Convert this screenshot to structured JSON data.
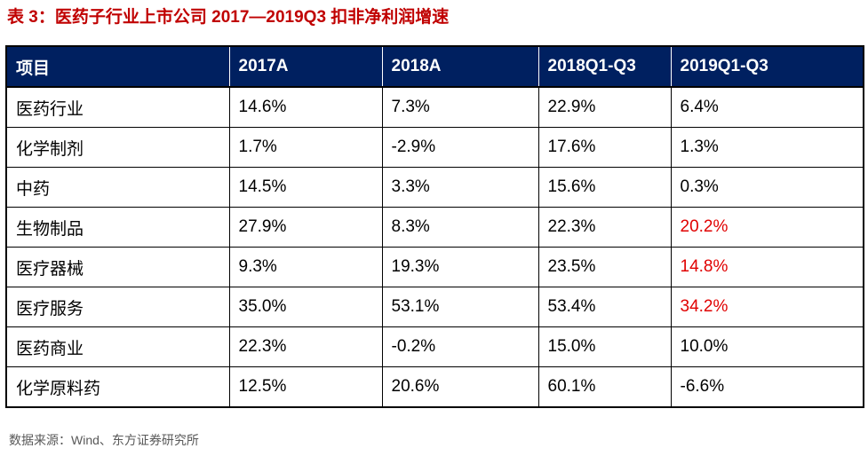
{
  "title": "表 3：医药子行业上市公司 2017—2019Q3 扣非净利润增速",
  "header": [
    "项目",
    "2017A",
    "2018A",
    "2018Q1-Q3",
    "2019Q1-Q3"
  ],
  "rows": [
    {
      "name": "医药行业",
      "v2017": "14.6%",
      "v2018": "7.3%",
      "q2018": "22.9%",
      "q2019": "6.4%",
      "highlight": false
    },
    {
      "name": "化学制剂",
      "v2017": "1.7%",
      "v2018": "-2.9%",
      "q2018": "17.6%",
      "q2019": "1.3%",
      "highlight": false
    },
    {
      "name": "中药",
      "v2017": "14.5%",
      "v2018": "3.3%",
      "q2018": "15.6%",
      "q2019": "0.3%",
      "highlight": false
    },
    {
      "name": "生物制品",
      "v2017": "27.9%",
      "v2018": "8.3%",
      "q2018": "22.3%",
      "q2019": "20.2%",
      "highlight": true
    },
    {
      "name": "医疗器械",
      "v2017": "9.3%",
      "v2018": "19.3%",
      "q2018": "23.5%",
      "q2019": "14.8%",
      "highlight": true
    },
    {
      "name": "医疗服务",
      "v2017": "35.0%",
      "v2018": "53.1%",
      "q2018": "53.4%",
      "q2019": "34.2%",
      "highlight": true
    },
    {
      "name": "医药商业",
      "v2017": "22.3%",
      "v2018": "-0.2%",
      "q2018": "15.0%",
      "q2019": "10.0%",
      "highlight": false
    },
    {
      "name": "化学原料药",
      "v2017": "12.5%",
      "v2018": "20.6%",
      "q2018": "60.1%",
      "q2019": "-6.6%",
      "highlight": false
    }
  ],
  "source": "数据来源：Wind、东方证券研究所",
  "colors": {
    "title": "#c00000",
    "header_bg": "#002060",
    "highlight": "#e00000"
  }
}
